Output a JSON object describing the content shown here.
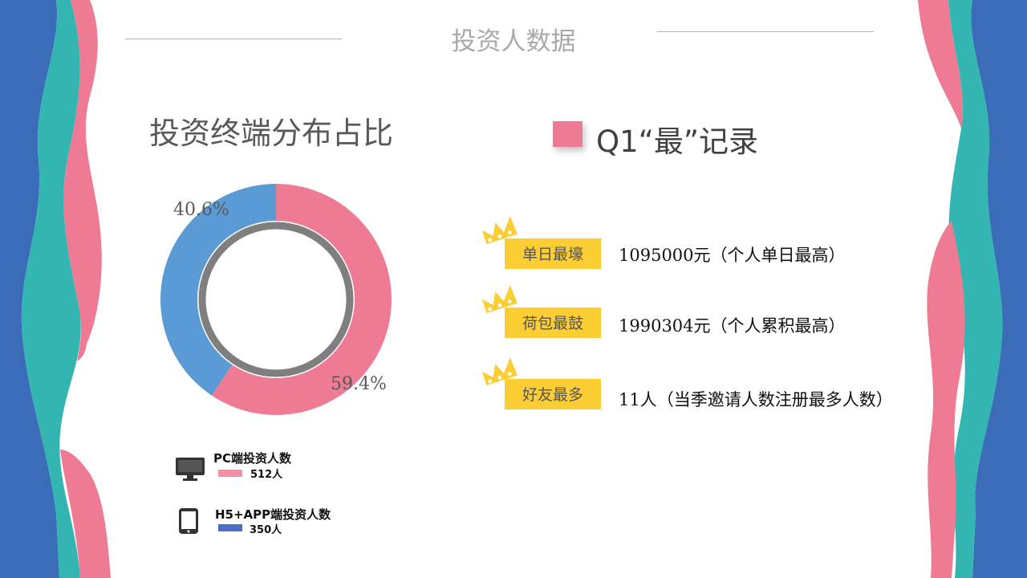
{
  "page": {
    "title": "投资人数据",
    "colors": {
      "pink": "#ee7b93",
      "blue": "#5b9bd5",
      "teal": "#33b6b2",
      "navy": "#3b6cb8",
      "gold": "#fcce34"
    }
  },
  "chart_data": {
    "type": "pie",
    "variant": "donut",
    "title": "投资终端分布占比",
    "slices": [
      {
        "label": "PC端投资人数",
        "count_label": "512人",
        "value": 512,
        "percent_label": "59.4%",
        "color": "#ee7b93",
        "icon": "monitor-icon"
      },
      {
        "label": "H5+APP端投资人数",
        "count_label": "350人",
        "value": 350,
        "percent_label": "40.6%",
        "color": "#5b9bd5",
        "icon": "tablet-icon"
      }
    ],
    "legend_position": "bottom-left"
  },
  "records": {
    "heading": "Q1“最”记录",
    "items": [
      {
        "tag": "单日最壕",
        "value": "1095000元（个人单日最高）",
        "icon": "crown-icon"
      },
      {
        "tag": "荷包最鼓",
        "value": "1990304元（个人累积最高）",
        "icon": "crown-icon"
      },
      {
        "tag": "好友最多",
        "value": "11人（当季邀请人数注册最多人数）",
        "icon": "crown-icon"
      }
    ]
  }
}
